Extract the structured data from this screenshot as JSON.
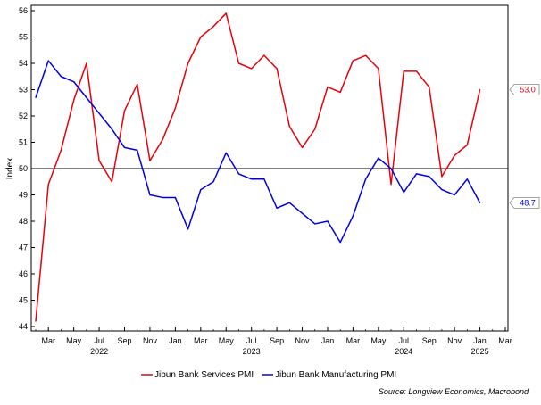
{
  "chart_data": {
    "type": "line",
    "title": "",
    "ylabel": "Index",
    "xlabel": "",
    "ylim": [
      44,
      56
    ],
    "yticks": [
      44,
      45,
      46,
      47,
      48,
      49,
      50,
      51,
      52,
      53,
      54,
      55,
      56
    ],
    "reference_line": 50,
    "grid": false,
    "legend_position": "bottom-center",
    "x_range": [
      "2022-02",
      "2025-03"
    ],
    "x_month_ticks": [
      "Mar",
      "May",
      "Jul",
      "Sep",
      "Nov",
      "Jan",
      "Mar",
      "May",
      "Jul",
      "Sep",
      "Nov",
      "Jan",
      "Mar",
      "May",
      "Jul",
      "Sep",
      "Nov",
      "Jan",
      "Mar"
    ],
    "x_year_labels": [
      "2022",
      "2023",
      "2024",
      "2025"
    ],
    "x": [
      "2022-02",
      "2022-03",
      "2022-04",
      "2022-05",
      "2022-06",
      "2022-07",
      "2022-08",
      "2022-09",
      "2022-10",
      "2022-11",
      "2022-12",
      "2023-01",
      "2023-02",
      "2023-03",
      "2023-04",
      "2023-05",
      "2023-06",
      "2023-07",
      "2023-08",
      "2023-09",
      "2023-10",
      "2023-11",
      "2023-12",
      "2024-01",
      "2024-02",
      "2024-03",
      "2024-04",
      "2024-05",
      "2024-06",
      "2024-07",
      "2024-08",
      "2024-09",
      "2024-10",
      "2024-11",
      "2024-12",
      "2025-01"
    ],
    "series": [
      {
        "name": "Jibun Bank Services PMI",
        "color": "#e8000b",
        "last_label": "53.0",
        "values": [
          44.2,
          49.4,
          50.7,
          52.6,
          54.0,
          50.3,
          49.5,
          52.2,
          53.2,
          50.3,
          51.1,
          52.3,
          54.0,
          55.0,
          55.4,
          55.9,
          54.0,
          53.8,
          54.3,
          53.8,
          51.6,
          50.8,
          51.5,
          53.1,
          52.9,
          54.1,
          54.3,
          53.8,
          49.4,
          53.7,
          53.7,
          53.1,
          49.7,
          50.5,
          50.9,
          53.0
        ]
      },
      {
        "name": "Jibun Bank Manufacturing PMI",
        "color": "#0000e0",
        "last_label": "48.7",
        "values": [
          52.7,
          54.1,
          53.5,
          53.3,
          52.7,
          52.1,
          51.5,
          50.8,
          50.7,
          49.0,
          48.9,
          48.9,
          47.7,
          49.2,
          49.5,
          50.6,
          49.8,
          49.6,
          49.6,
          48.5,
          48.7,
          48.3,
          47.9,
          48.0,
          47.2,
          48.2,
          49.6,
          50.4,
          50.0,
          49.1,
          49.8,
          49.7,
          49.2,
          49.0,
          49.6,
          48.7
        ]
      }
    ],
    "source": "Source: Longview Economics, Macrobond"
  }
}
